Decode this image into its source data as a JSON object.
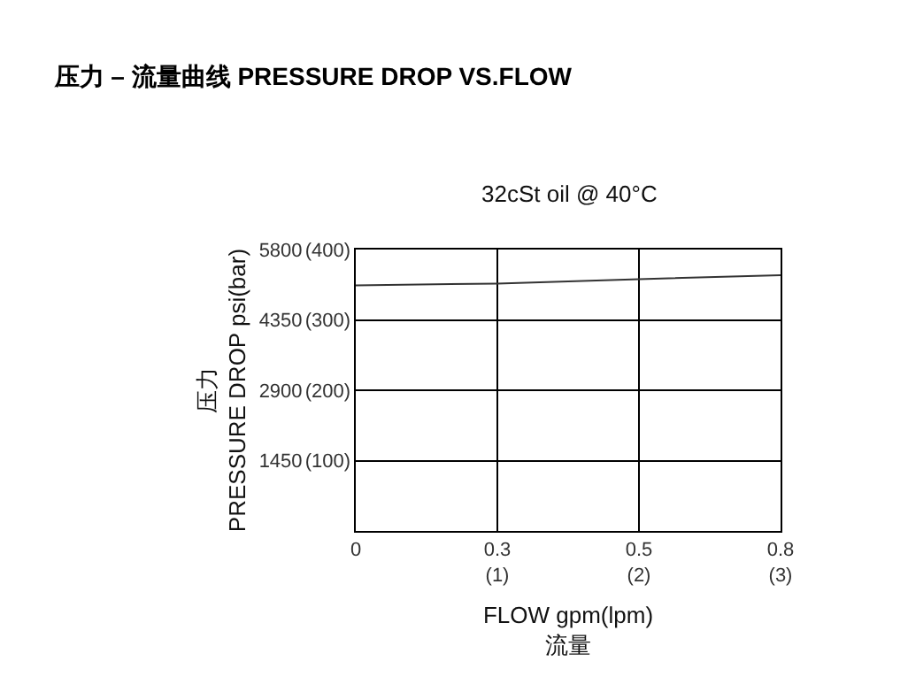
{
  "chart_data": {
    "type": "line",
    "title": "压力 – 流量曲线 PRESSURE DROP VS.FLOW",
    "subtitle": "32cSt oil @ 40°C",
    "xlabel": "FLOW gpm(lpm)\n流量",
    "ylabel": "压力\nPRESSURE DROP psi(bar)",
    "categories": [
      "0",
      "0.3\n(1)",
      "0.5\n(2)",
      "0.8\n(3)"
    ],
    "series": [
      {
        "color": "#333333",
        "values": [
          5060,
          5100,
          5190,
          5270
        ]
      }
    ],
    "ylim": [
      0,
      5800
    ],
    "yticks": [
      1450,
      2900,
      4350,
      5800
    ],
    "y2lim": [
      0,
      400
    ],
    "y2ticks": [
      {
        "value": 100,
        "label": "(100)"
      },
      {
        "value": 200,
        "label": "(200)"
      },
      {
        "value": 300,
        "label": "(300)"
      },
      {
        "value": 400,
        "label": "(400)"
      }
    ],
    "grid": true,
    "marker": "none",
    "line_style": "solid"
  }
}
